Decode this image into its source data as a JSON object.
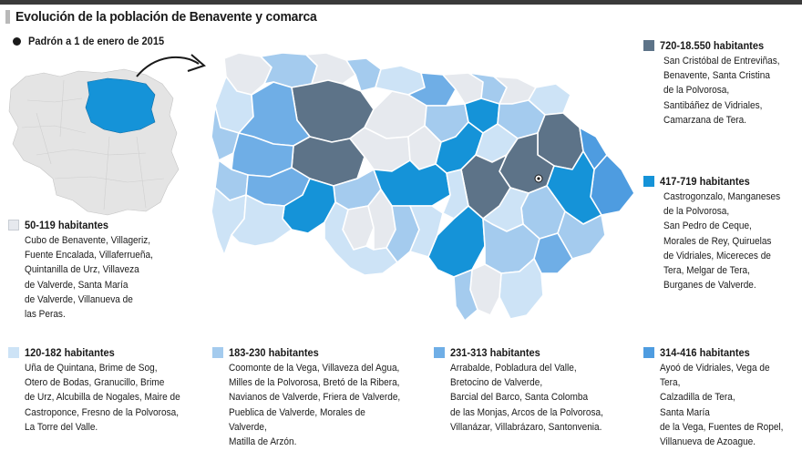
{
  "header": {
    "title": "Evolución de la población de Benavente y comarca",
    "subtitle": "Padrón a 1 de enero de 2015"
  },
  "colors": {
    "c50": "#e6e9ee",
    "c120": "#cde3f6",
    "c183": "#a4cbee",
    "c231": "#6faee6",
    "c314": "#4e9ce0",
    "c417": "#1593d8",
    "c720": "#5d7388",
    "border": "#ffffff",
    "outline": "#9fb0c0"
  },
  "legend": [
    {
      "id": "l1",
      "range": "720-18.550 habitantes",
      "color": "#5d7388",
      "towns": "San Cristóbal de Entreviñas,\nBenavente, Santa Cristina\nde la Polvorosa,\nSantibáñez de Vidriales,\nCamarzana de Tera."
    },
    {
      "id": "l2",
      "range": "417-719 habitantes",
      "color": "#1593d8",
      "towns": "Castrogonzalo, Manganeses\nde la Polvorosa,\nSan Pedro de Ceque,\nMorales de Rey,  Quiruelas\nde Vidriales, Micereces de\nTera, Melgar de Tera,\nBurganes de Valverde."
    },
    {
      "id": "l3",
      "range": "50-119 habitantes",
      "color": "#e6e9ee",
      "towns": "Cubo de Benavente, Villageriz,\nFuente Encalada, Villaferrueña,\nQuintanilla de Urz, Villaveza\nde Valverde, Santa María\nde Valverde, Villanueva de\nlas Peras."
    },
    {
      "id": "l4",
      "range": "120-182 habitantes",
      "color": "#cde3f6",
      "towns": "Uña de Quintana, Brime de Sog,\nOtero de Bodas, Granucillo, Brime\nde Urz, Alcubilla de Nogales, Maire de\nCastroponce, Fresno de la Polvorosa,\nLa Torre del Valle."
    },
    {
      "id": "l5",
      "range": "183-230 habitantes",
      "color": "#a4cbee",
      "towns": "Coomonte de la Vega, Villaveza del Agua,\nMilles de la Polvorosa, Bretó de la Ribera,\nNavianos de Valverde, Friera de Valverde,\nPueblica de Valverde, Morales de Valverde,\nMatilla de Arzón."
    },
    {
      "id": "l6",
      "range": "231-313 habitantes",
      "color": "#6faee6",
      "towns": "Arrabalde, Pobladura del Valle,\nBretocino de Valverde,\nBarcial del Barco,  Santa Colomba\nde las Monjas, Arcos de la Polvorosa,\nVillanázar, Villabrázaro, Santonvenia."
    },
    {
      "id": "l7",
      "range": "314-416 habitantes",
      "color": "#4e9ce0",
      "towns": "Ayoó de Vidriales, Vega de Tera,\nCalzadilla de Tera,\nSanta María\nde la Vega, Fuentes de Ropel,\nVillanueva de Azoague."
    }
  ]
}
